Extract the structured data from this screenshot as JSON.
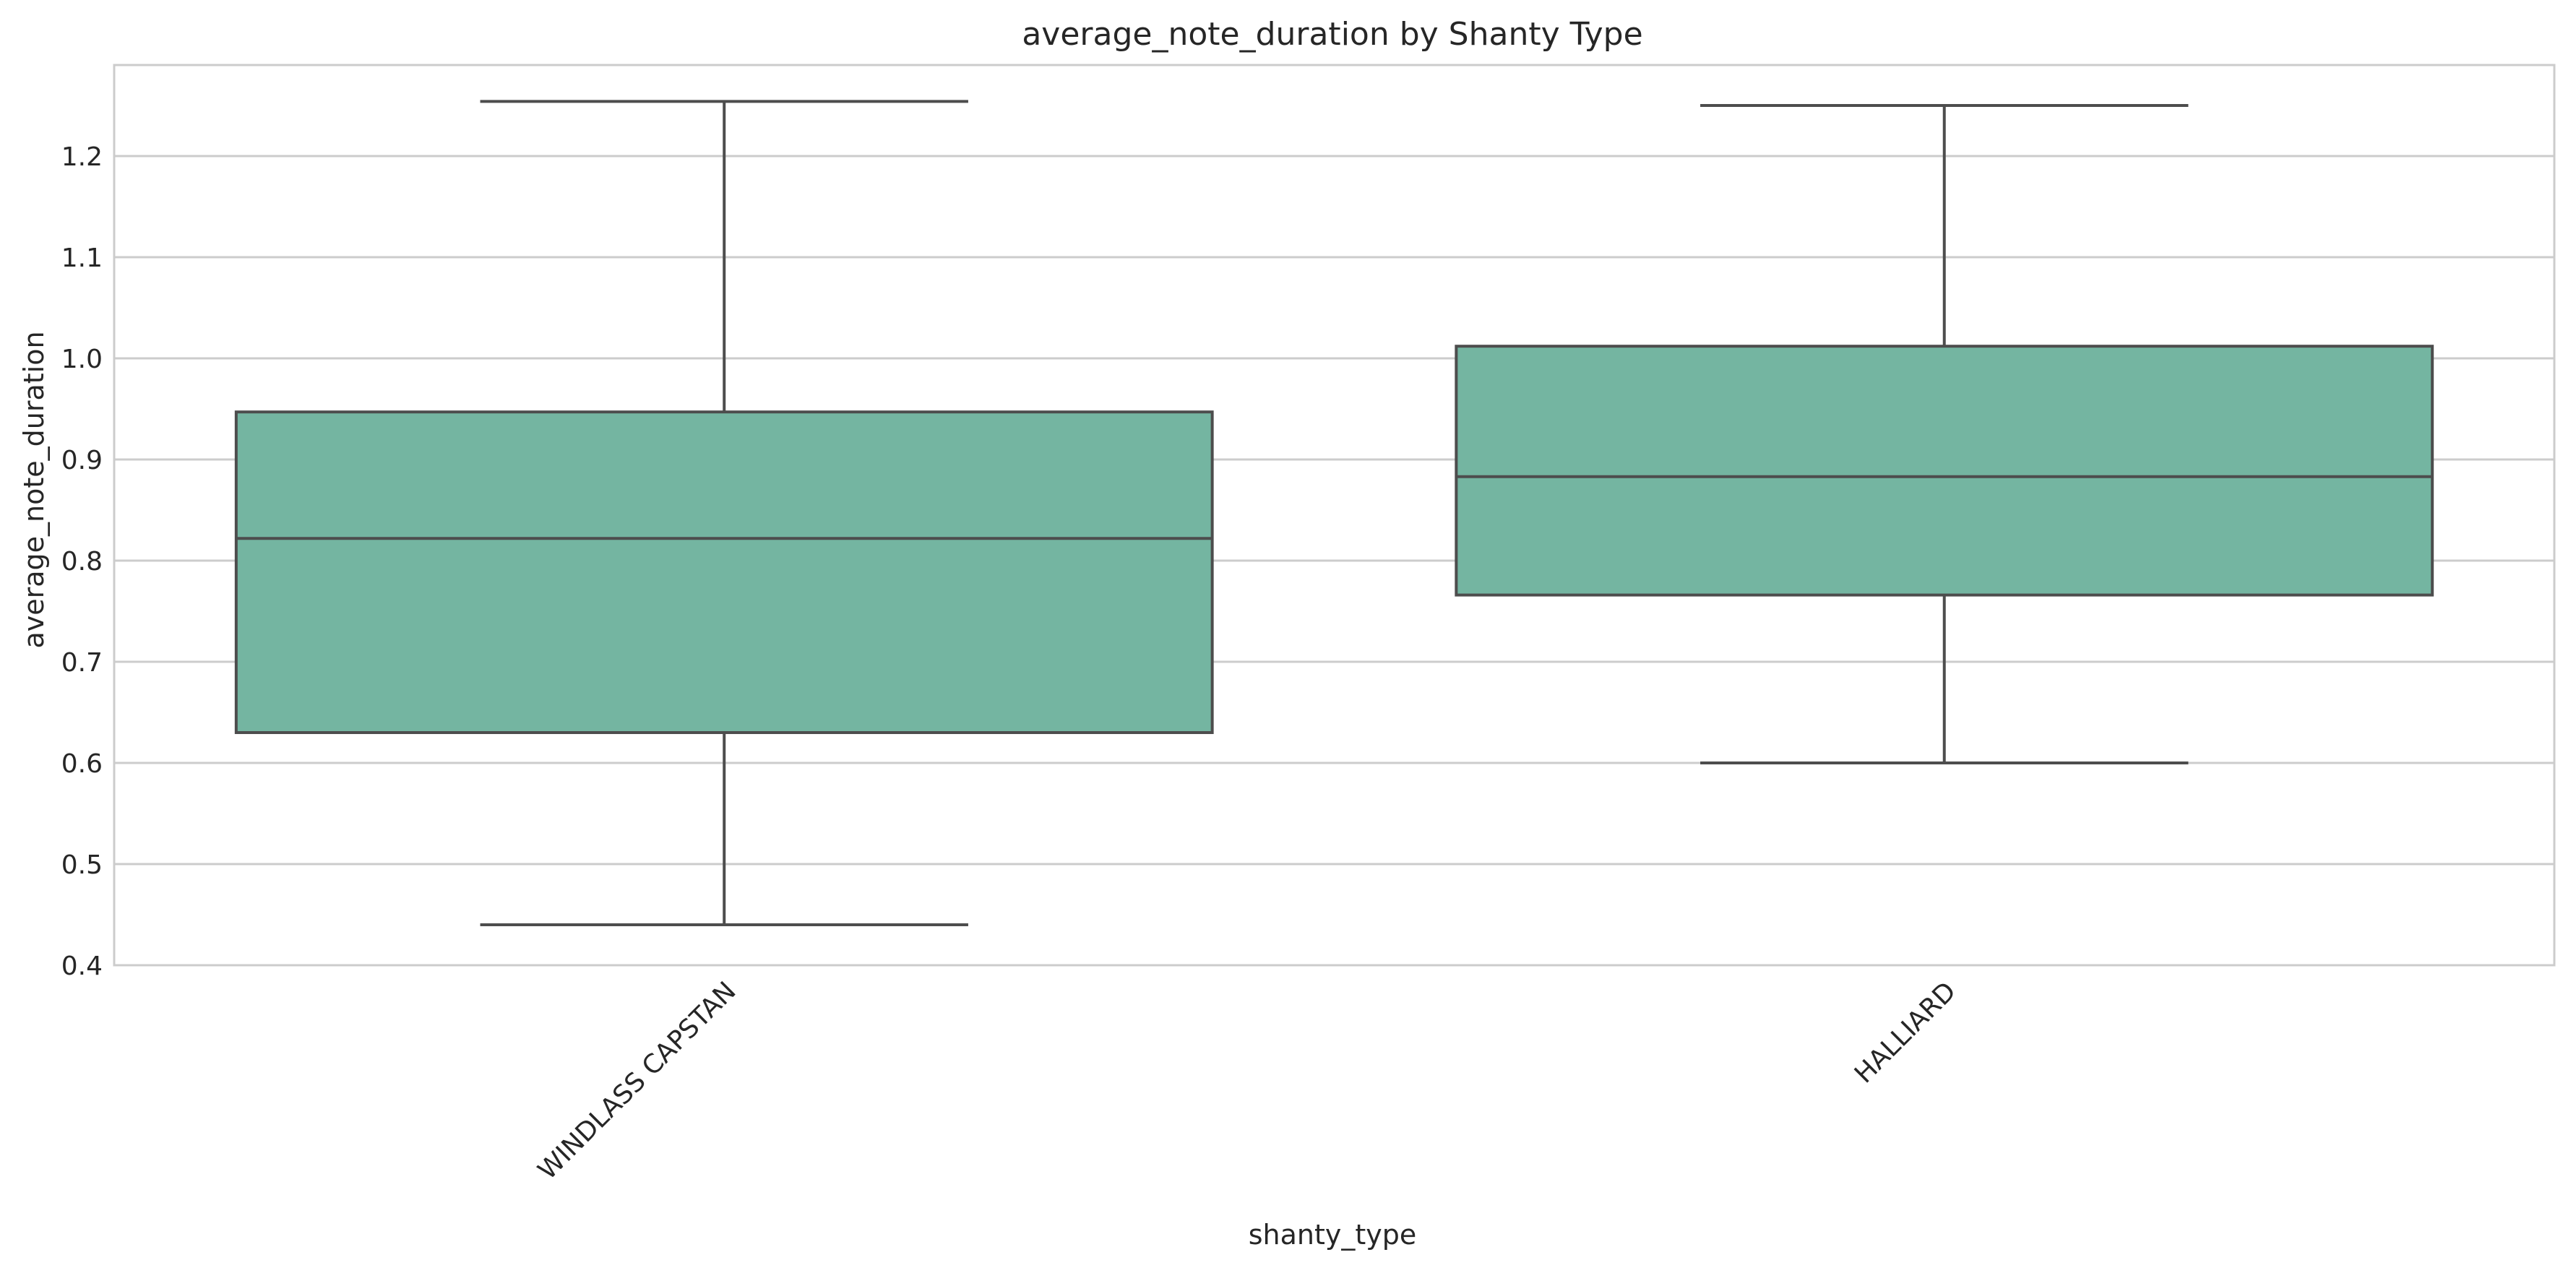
{
  "chart_data": {
    "type": "box",
    "title": "average_note_duration by Shanty Type",
    "xlabel": "shanty_type",
    "ylabel": "average_note_duration",
    "ylim": [
      0.4,
      1.29
    ],
    "yticks": [
      0.4,
      0.5,
      0.6,
      0.7,
      0.8,
      0.9,
      1.0,
      1.1,
      1.2
    ],
    "ytick_labels": [
      "0.4",
      "0.5",
      "0.6",
      "0.7",
      "0.8",
      "0.9",
      "1.0",
      "1.1",
      "1.2"
    ],
    "grid": true,
    "x_tick_rotation": 45,
    "box_color": "#74b5a1",
    "line_color": "#4d4d4d",
    "categories": [
      "WINDLASS CAPSTAN",
      "HALLIARD"
    ],
    "boxes": [
      {
        "category": "WINDLASS CAPSTAN",
        "whisker_low": 0.44,
        "q1": 0.63,
        "median": 0.822,
        "q3": 0.947,
        "whisker_high": 1.254
      },
      {
        "category": "HALLIARD",
        "whisker_low": 0.6,
        "q1": 0.766,
        "median": 0.883,
        "q3": 1.012,
        "whisker_high": 1.25
      }
    ]
  }
}
